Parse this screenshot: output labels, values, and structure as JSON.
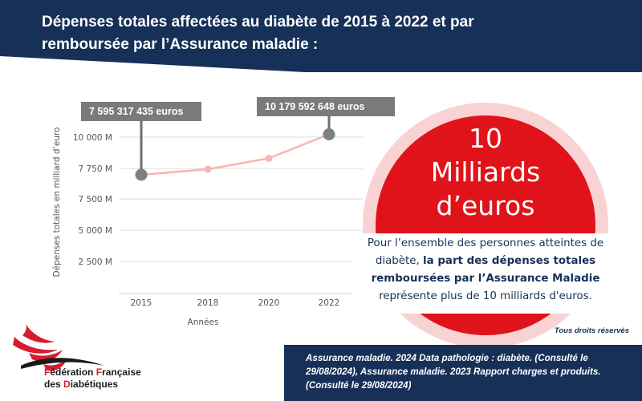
{
  "header": {
    "title_line1": "Dépenses totales affectées au diabète de 2015 à 2022 et par",
    "title_line2": "remboursée par l’Assurance maladie :"
  },
  "colors": {
    "banner": "#173058",
    "line": "#f7b5b5",
    "marker_highlight": "#808080",
    "disc_red": "#e0131b",
    "disc_halo": "#f9d3d3",
    "logo_red": "#d51d2e"
  },
  "chart_data": {
    "type": "line",
    "x": [
      "2015",
      "2018",
      "2020",
      "2022"
    ],
    "series": [
      {
        "values": [
          7595317435,
          7950000000,
          8650000000,
          10179592648
        ]
      }
    ],
    "ylabel": "Dépenses totales en milliard d’euro",
    "xlabel": "Années",
    "yticks": [
      "2 500 M",
      "5 000 M",
      "7 500 M",
      "7 750 M",
      "10 000 M"
    ],
    "ylim": [
      0,
      10500000000
    ],
    "highlighted": [
      "2015",
      "2022"
    ],
    "annotations": [
      "7 595 317 435 euros",
      "10 179 592 648 euros"
    ],
    "grid": "horizontal",
    "legend": "none"
  },
  "highlight": {
    "number": "10",
    "unit_line1": "Milliards",
    "unit_line2": "d’euros"
  },
  "description": {
    "part1": "Pour l’ensemble des personnes atteintes de diabète, ",
    "bold": "la part des dépenses totales remboursées par l’Assurance Maladie",
    "part2": " représente plus de 10 milliards d'euros."
  },
  "rights": "Tous droits réservés",
  "source": "Assurance maladie. 2024 Data pathologie : diabète. (Consulté le 29/08/2024), Assurance maladie. 2023 Rapport charges et produits. (Consulté le 29/08/2024)",
  "logo": {
    "line1_cap": "F",
    "line1_rest": "édération ",
    "line1_cap2": "F",
    "line1_rest2": "rançaise",
    "line2_pre": "des ",
    "line2_cap": "D",
    "line2_rest": "iabétiques"
  }
}
